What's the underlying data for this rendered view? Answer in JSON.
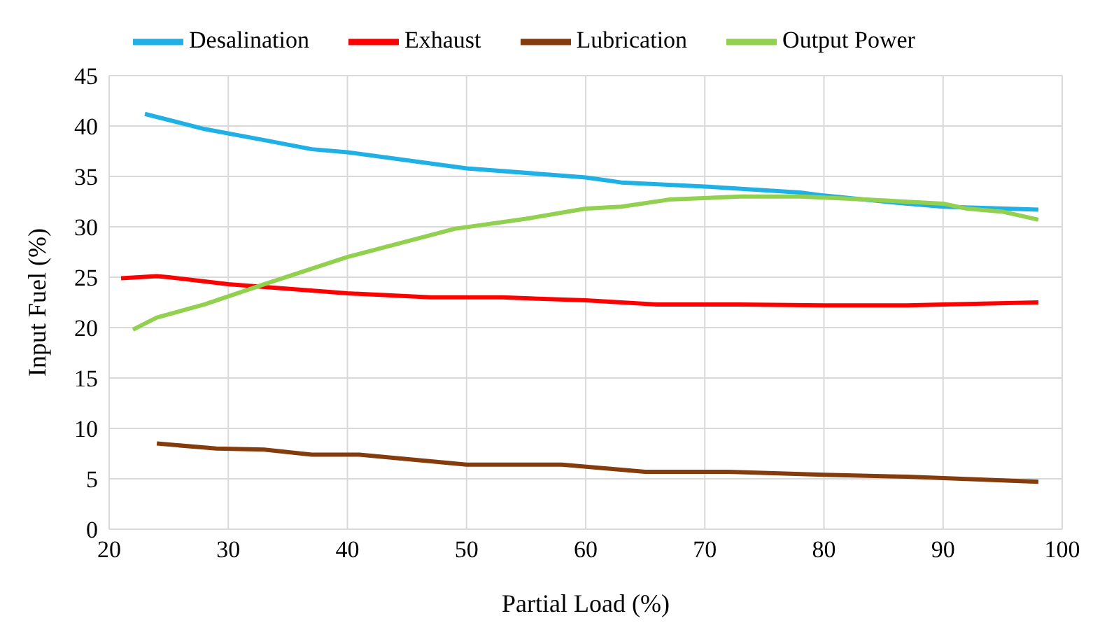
{
  "chart_data": {
    "type": "line",
    "xlabel": "Partial Load (%)",
    "ylabel": "Input Fuel (%)",
    "xlim": [
      20,
      100
    ],
    "xticks": [
      20,
      30,
      40,
      50,
      60,
      70,
      80,
      90,
      100
    ],
    "ylim": [
      0,
      45
    ],
    "yticks": [
      0,
      5,
      10,
      15,
      20,
      25,
      30,
      35,
      40,
      45
    ],
    "grid": true,
    "legend": "top",
    "marker": "none",
    "line_style": "solid",
    "series": [
      {
        "name": "Desalination",
        "color": "#1fb0e6",
        "x": [
          23,
          28,
          33,
          37,
          40,
          50,
          60,
          63,
          70,
          78,
          80,
          86,
          90,
          98
        ],
        "values": [
          41.2,
          39.7,
          38.6,
          37.7,
          37.4,
          35.8,
          34.9,
          34.4,
          34,
          33.4,
          33.1,
          32.4,
          32,
          31.7
        ]
      },
      {
        "name": "Exhaust",
        "color": "#ff0000",
        "x": [
          21,
          24,
          25,
          30,
          40,
          47,
          53,
          60,
          66,
          73,
          80,
          87,
          90,
          98
        ],
        "values": [
          24.9,
          25.1,
          25,
          24.3,
          23.4,
          23,
          23,
          22.7,
          22.3,
          22.3,
          22.2,
          22.2,
          22.3,
          22.5
        ]
      },
      {
        "name": "Output Power",
        "color": "#92d050",
        "x": [
          22,
          24,
          28,
          33,
          40,
          49,
          55,
          60,
          63,
          67,
          73,
          78,
          82,
          90,
          92,
          95,
          98
        ],
        "values": [
          19.8,
          21,
          22.3,
          24.3,
          27,
          29.8,
          30.8,
          31.8,
          32,
          32.7,
          33,
          33,
          32.8,
          32.3,
          31.8,
          31.5,
          30.7
        ]
      },
      {
        "name": "Lubrication",
        "color": "#843c0c",
        "x": [
          24,
          29,
          33,
          37,
          41,
          50,
          58,
          65,
          72,
          80,
          87,
          98
        ],
        "values": [
          8.5,
          8,
          7.9,
          7.4,
          7.4,
          6.4,
          6.4,
          5.7,
          5.7,
          5.4,
          5.2,
          4.7
        ]
      }
    ]
  }
}
